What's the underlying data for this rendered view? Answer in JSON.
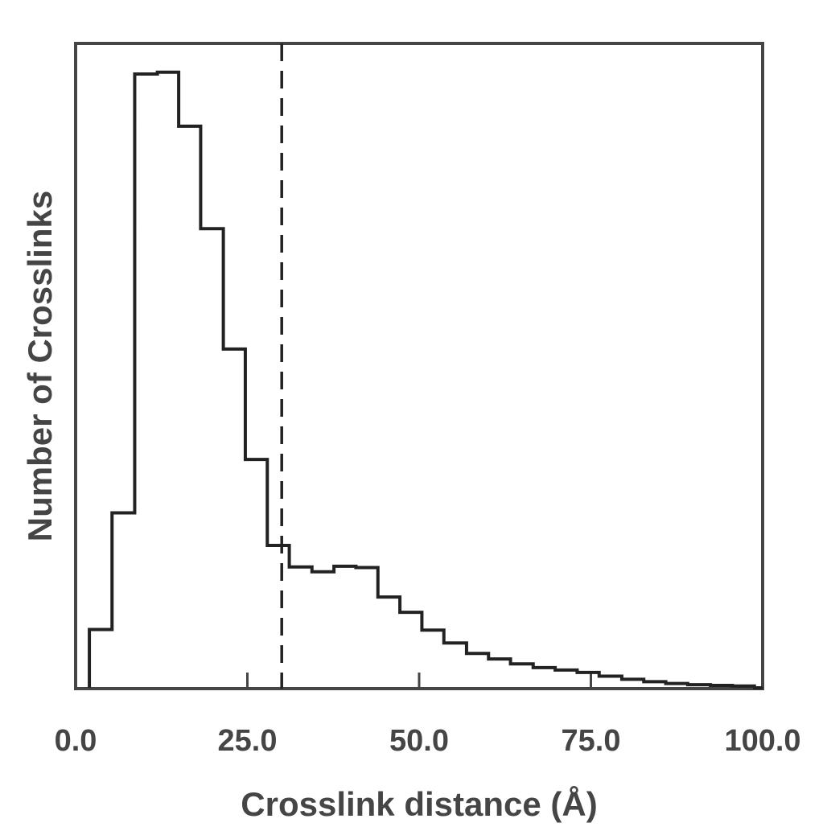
{
  "chart_data": {
    "type": "histogram",
    "title": "",
    "xlabel": "Crosslink distance (Å)",
    "ylabel": "Number of Crosslinks",
    "xlim": [
      0,
      100
    ],
    "ylim": [
      0,
      1.0
    ],
    "y_tick_labels": false,
    "grid": false,
    "legend": "none",
    "x_ticks": [
      {
        "value": 0,
        "label": "0.0"
      },
      {
        "value": 25,
        "label": "25.0"
      },
      {
        "value": 50,
        "label": "50.0"
      },
      {
        "value": 75,
        "label": "75.0"
      },
      {
        "value": 100,
        "label": "100.0"
      }
    ],
    "reference_line": {
      "x": 30,
      "style": "dashed"
    },
    "bins": [
      {
        "x0": 2.0,
        "x1": 5.3,
        "value": 0.095
      },
      {
        "x0": 5.3,
        "x1": 8.6,
        "value": 0.285
      },
      {
        "x0": 8.6,
        "x1": 11.9,
        "value": 1.0
      },
      {
        "x0": 11.9,
        "x1": 15.0,
        "value": 1.003
      },
      {
        "x0": 15.0,
        "x1": 18.2,
        "value": 0.915
      },
      {
        "x0": 18.2,
        "x1": 21.5,
        "value": 0.748
      },
      {
        "x0": 21.5,
        "x1": 24.7,
        "value": 0.552
      },
      {
        "x0": 24.7,
        "x1": 27.9,
        "value": 0.372
      },
      {
        "x0": 27.9,
        "x1": 31.1,
        "value": 0.232
      },
      {
        "x0": 31.1,
        "x1": 34.4,
        "value": 0.197
      },
      {
        "x0": 34.4,
        "x1": 37.6,
        "value": 0.189
      },
      {
        "x0": 37.6,
        "x1": 40.8,
        "value": 0.198
      },
      {
        "x0": 40.8,
        "x1": 44.0,
        "value": 0.196
      },
      {
        "x0": 44.0,
        "x1": 47.2,
        "value": 0.148
      },
      {
        "x0": 47.2,
        "x1": 50.4,
        "value": 0.123
      },
      {
        "x0": 50.4,
        "x1": 53.6,
        "value": 0.094
      },
      {
        "x0": 53.6,
        "x1": 56.9,
        "value": 0.073
      },
      {
        "x0": 56.9,
        "x1": 60.1,
        "value": 0.056
      },
      {
        "x0": 60.1,
        "x1": 63.3,
        "value": 0.047
      },
      {
        "x0": 63.3,
        "x1": 66.6,
        "value": 0.039
      },
      {
        "x0": 66.6,
        "x1": 69.8,
        "value": 0.033
      },
      {
        "x0": 69.8,
        "x1": 73.0,
        "value": 0.029
      },
      {
        "x0": 73.0,
        "x1": 76.2,
        "value": 0.025
      },
      {
        "x0": 76.2,
        "x1": 79.5,
        "value": 0.019
      },
      {
        "x0": 79.5,
        "x1": 82.7,
        "value": 0.014
      },
      {
        "x0": 82.7,
        "x1": 85.9,
        "value": 0.01
      },
      {
        "x0": 85.9,
        "x1": 89.1,
        "value": 0.007
      },
      {
        "x0": 89.1,
        "x1": 92.4,
        "value": 0.005
      },
      {
        "x0": 92.4,
        "x1": 95.6,
        "value": 0.004
      },
      {
        "x0": 95.6,
        "x1": 98.8,
        "value": 0.003
      }
    ],
    "colors": {
      "line": "#222222",
      "axes": "#454545",
      "text": "#454545"
    }
  }
}
